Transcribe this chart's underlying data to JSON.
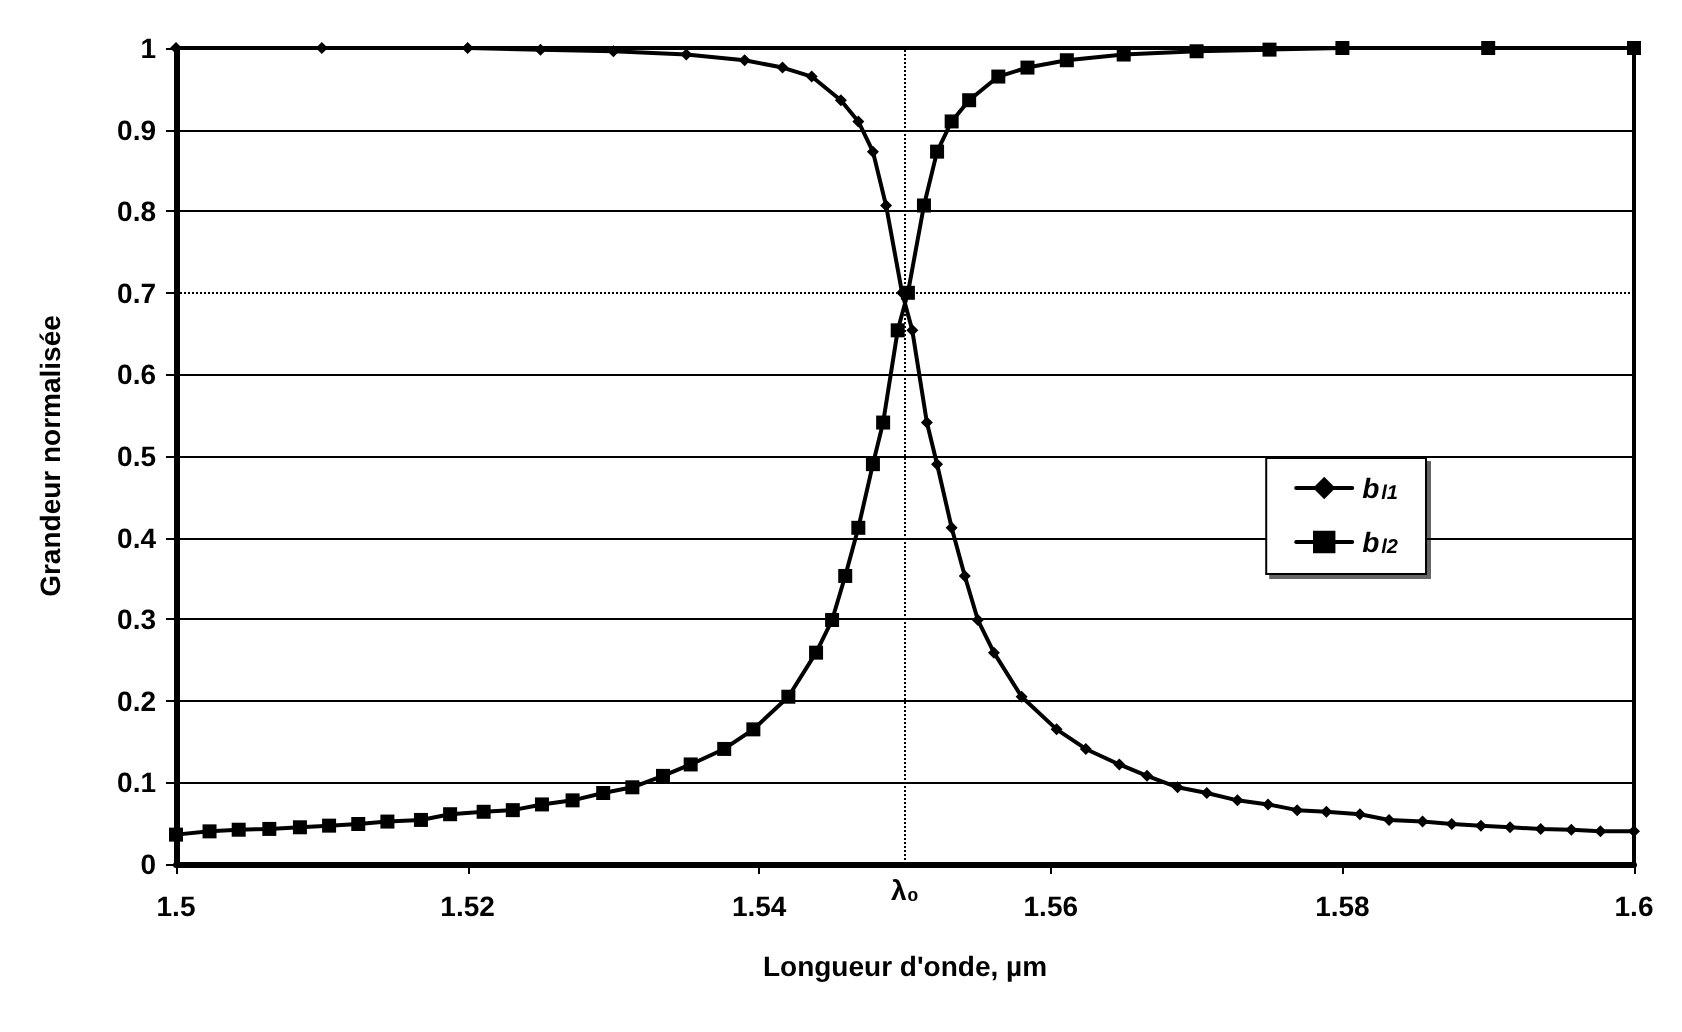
{
  "chart_data": {
    "type": "line",
    "xlabel": "Longueur d'onde, µm",
    "ylabel": "Grandeur normalisée",
    "xlim": [
      1.5,
      1.6
    ],
    "xticks": [
      1.5,
      1.52,
      1.54,
      1.56,
      1.58,
      1.6
    ],
    "ylim": [
      0,
      1
    ],
    "yticks": [
      0,
      0.1,
      0.2,
      0.3,
      0.4,
      0.5,
      0.6,
      0.7,
      0.8,
      0.9,
      1
    ],
    "grid": "y",
    "legend": "right",
    "line_style": "solid",
    "ref_lines": [
      {
        "axis": "x",
        "value": 1.55,
        "label": "λ₀",
        "line_style": "dotted",
        "color": "#000000"
      },
      {
        "axis": "y",
        "value": 0.7,
        "label": null,
        "line_style": "dotted",
        "color": "#000000"
      }
    ],
    "series": [
      {
        "name": "b$_{l1}$",
        "color": "#000000",
        "marker": "diamond",
        "x": [
          1.5,
          1.51,
          1.52,
          1.525,
          1.53,
          1.535,
          1.539,
          1.5416,
          1.5436,
          1.5456,
          1.5468,
          1.5478,
          1.5487,
          1.5498,
          1.5505,
          1.5515,
          1.5522,
          1.5532,
          1.5541,
          1.555,
          1.5561,
          1.558,
          1.5604,
          1.5624,
          1.5647,
          1.5666,
          1.5687,
          1.5707,
          1.5728,
          1.5749,
          1.5769,
          1.5789,
          1.5812,
          1.5832,
          1.5855,
          1.5875,
          1.5895,
          1.5915,
          1.5936,
          1.5957,
          1.5977,
          1.6
        ],
        "values": [
          1,
          1,
          1,
          0.998,
          0.996,
          0.992,
          0.985,
          0.976,
          0.965,
          0.936,
          0.91,
          0.873,
          0.807,
          0.7,
          0.654,
          0.541,
          0.49,
          0.412,
          0.353,
          0.299,
          0.259,
          0.205,
          0.165,
          0.141,
          0.122,
          0.108,
          0.094,
          0.087,
          0.078,
          0.073,
          0.066,
          0.064,
          0.061,
          0.054,
          0.052,
          0.049,
          0.047,
          0.045,
          0.043,
          0.042,
          0.04,
          0.04
        ]
      },
      {
        "name": "b$_{l2}$",
        "color": "#000000",
        "marker": "square",
        "x": [
          1.5,
          1.5023,
          1.5043,
          1.5064,
          1.5085,
          1.5105,
          1.5125,
          1.5145,
          1.5168,
          1.5188,
          1.5211,
          1.5231,
          1.5251,
          1.5272,
          1.5293,
          1.5313,
          1.5334,
          1.5353,
          1.5376,
          1.5396,
          1.542,
          1.5439,
          1.545,
          1.5459,
          1.5468,
          1.5478,
          1.5485,
          1.5495,
          1.5502,
          1.5513,
          1.5522,
          1.5532,
          1.5544,
          1.5564,
          1.5584,
          1.5611,
          1.565,
          1.57,
          1.575,
          1.58,
          1.59,
          1.6
        ],
        "values": [
          0.036,
          0.04,
          0.042,
          0.043,
          0.045,
          0.047,
          0.049,
          0.052,
          0.054,
          0.061,
          0.064,
          0.066,
          0.073,
          0.078,
          0.087,
          0.094,
          0.108,
          0.122,
          0.141,
          0.165,
          0.205,
          0.259,
          0.299,
          0.353,
          0.412,
          0.49,
          0.541,
          0.654,
          0.7,
          0.807,
          0.873,
          0.91,
          0.936,
          0.965,
          0.976,
          0.985,
          0.992,
          0.996,
          0.998,
          1,
          1,
          1
        ]
      }
    ]
  }
}
